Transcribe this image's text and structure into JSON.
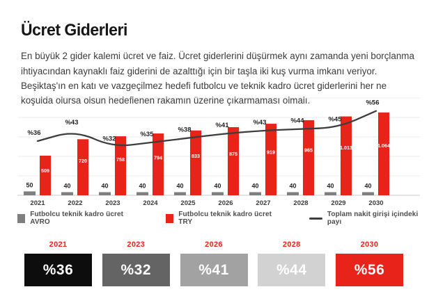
{
  "page": {
    "title": "Ücret Giderleri",
    "description": "En büyük 2 gider kalemi ücret ve faiz. Ücret giderlerini düşürmek aynı zamanda yeni borçlanma ihtiyacından kaynaklı faiz giderini de azalttığı için bir taşla iki kuş vurma imkanı veriyor. Beşiktaş'ın en katı ve vazgeçilmez hedefi futbolcu ve teknik kadro ücret giderlerini her ne koşulda olursa olsun hedeflenen rakamın üzerine çıkarmaması olmalı."
  },
  "chart_data": {
    "type": "bar",
    "title": "",
    "categories": [
      "2021",
      "2022",
      "2023",
      "2024",
      "2025",
      "2026",
      "2027",
      "2028",
      "2029",
      "2030"
    ],
    "series": [
      {
        "name": "Futbolcu teknik kadro ücret AVRO",
        "kind": "bar",
        "color": "#7f7f7f",
        "values": [
          50,
          40,
          40,
          40,
          40,
          40,
          40,
          40,
          40,
          40
        ],
        "labels": [
          "50",
          "40",
          "40",
          "40",
          "40",
          "40",
          "40",
          "40",
          "40",
          "40"
        ]
      },
      {
        "name": "Futbolcu teknik kadro ücret TRY",
        "kind": "bar",
        "color": "#e8231a",
        "values": [
          509,
          720,
          758,
          794,
          833,
          875,
          919,
          965,
          1013,
          1064
        ],
        "labels": [
          "509",
          "720",
          "758",
          "794",
          "833",
          "875",
          "919",
          "965",
          "1.013",
          "1.064"
        ]
      },
      {
        "name": "Toplam nakit girişi içindeki payı",
        "kind": "line",
        "color": "#3d3d3d",
        "values": [
          36,
          43,
          32,
          35,
          38,
          41,
          43,
          44,
          45,
          56
        ],
        "labels": [
          "%36",
          "%43",
          "%32",
          "%35",
          "%38",
          "%41",
          "%43",
          "%44",
          "%45",
          "%56"
        ]
      }
    ],
    "xlabel": "",
    "ylabel": "",
    "ylim": [
      0,
      1250
    ],
    "y2lim": [
      0,
      66
    ],
    "grid": true,
    "legend_position": "bottom"
  },
  "highlights": [
    {
      "year": "2021",
      "value": "%36",
      "bg": "#0d0d0d",
      "fg": "#ffffff"
    },
    {
      "year": "2023",
      "value": "%32",
      "bg": "#646464",
      "fg": "#ffffff"
    },
    {
      "year": "2026",
      "value": "%41",
      "bg": "#a2a2a2",
      "fg": "#ffffff"
    },
    {
      "year": "2028",
      "value": "%44",
      "bg": "#d2d2d2",
      "fg": "#ffffff"
    },
    {
      "year": "2030",
      "value": "%56",
      "bg": "#e8231a",
      "fg": "#ffffff"
    }
  ],
  "colors": {
    "accent_red": "#e8231a",
    "bar_gray": "#7f7f7f",
    "line_dark": "#3d3d3d",
    "grid": "#ebebeb",
    "axis": "#c9c9c9",
    "text_dark": "#222222",
    "year_label": "#3a3a3a",
    "highlight_year": "#e8231a"
  }
}
